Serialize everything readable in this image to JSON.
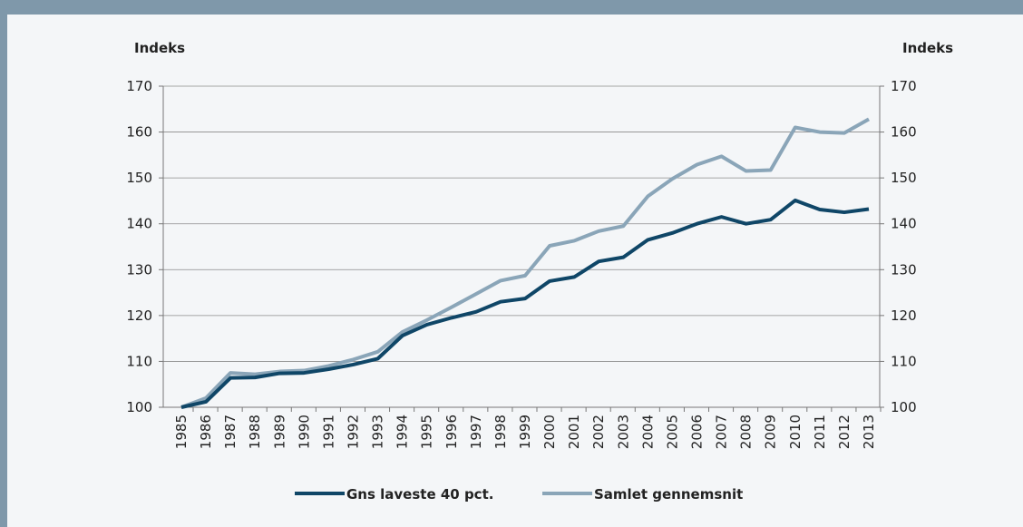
{
  "chart_data": {
    "type": "line",
    "y_label": "Indeks",
    "y2_label": "Indeks",
    "categories": [
      "1985",
      "1986",
      "1987",
      "1988",
      "1989",
      "1990",
      "1991",
      "1992",
      "1993",
      "1994",
      "1995",
      "1996",
      "1997",
      "1998",
      "1999",
      "2000",
      "2001",
      "2002",
      "2003",
      "2004",
      "2005",
      "2006",
      "2007",
      "2008",
      "2009",
      "2010",
      "2011",
      "2012",
      "2013"
    ],
    "series": [
      {
        "name": "Gns laveste 40 pct.",
        "color": "#0f4667",
        "values": [
          100,
          101.2,
          106.4,
          106.5,
          107.4,
          107.5,
          108.3,
          109.3,
          110.6,
          115.6,
          118,
          119.5,
          120.8,
          123,
          123.7,
          127.5,
          128.4,
          131.8,
          132.7,
          136.5,
          138,
          140,
          141.5,
          140,
          140.9,
          145.1,
          143.1,
          142.5,
          143.2
        ]
      },
      {
        "name": "Samlet gennemsnit",
        "color": "#8aa5b8",
        "values": [
          100,
          102,
          107.5,
          107.2,
          107.8,
          108,
          109,
          110.4,
          112.1,
          116.4,
          119,
          121.8,
          124.7,
          127.6,
          128.7,
          135.2,
          136.3,
          138.4,
          139.5,
          146,
          149.8,
          152.9,
          154.7,
          151.5,
          151.7,
          161,
          160,
          159.8,
          162.8
        ]
      }
    ],
    "ylim": [
      100,
      170
    ],
    "yticks": [
      100,
      110,
      120,
      130,
      140,
      150,
      160,
      170
    ],
    "y2lim": [
      100,
      170
    ],
    "y2ticks": [
      100,
      110,
      120,
      130,
      140,
      150,
      160,
      170
    ],
    "grid": true,
    "legend": "bottom"
  }
}
